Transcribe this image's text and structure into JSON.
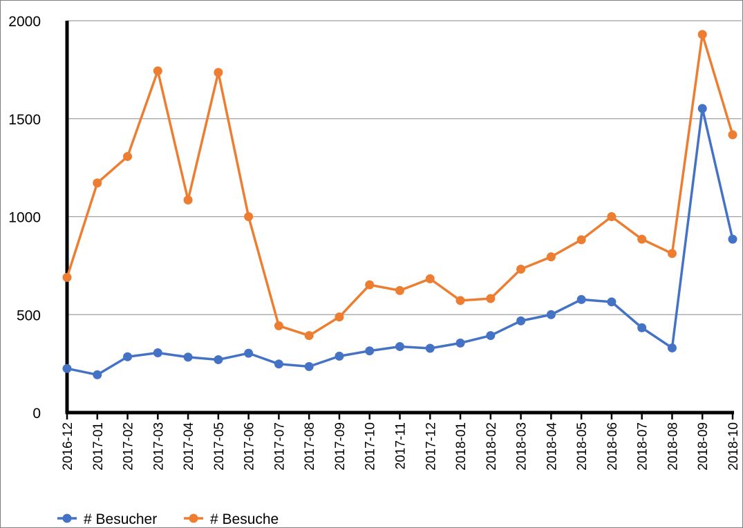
{
  "chart_data": {
    "type": "line",
    "title": "",
    "xlabel": "",
    "ylabel": "",
    "categories": [
      "2016-12",
      "2017-01",
      "2017-02",
      "2017-03",
      "2017-04",
      "2017-05",
      "2017-06",
      "2017-07",
      "2017-08",
      "2017-09",
      "2017-10",
      "2017-11",
      "2017-12",
      "2018-01",
      "2018-02",
      "2018-03",
      "2018-04",
      "2018-05",
      "2018-06",
      "2018-07",
      "2018-08",
      "2018-09",
      "2018-10"
    ],
    "ylim": [
      0,
      2000
    ],
    "yticks": [
      "0",
      "500",
      "1000",
      "1500",
      "2000"
    ],
    "grid": true,
    "legend": "bottom-left",
    "series": [
      {
        "name": "# Besucher",
        "color": "#4472c4",
        "values": [
          225,
          193,
          285,
          305,
          283,
          270,
          303,
          248,
          235,
          288,
          315,
          337,
          328,
          355,
          393,
          468,
          500,
          577,
          565,
          433,
          330,
          1552,
          885
        ]
      },
      {
        "name": "# Besuche",
        "color": "#ed7d31",
        "values": [
          690,
          1172,
          1307,
          1744,
          1085,
          1736,
          1000,
          443,
          393,
          488,
          652,
          623,
          683,
          572,
          582,
          732,
          795,
          882,
          1000,
          885,
          812,
          1930,
          1418
        ]
      }
    ]
  }
}
